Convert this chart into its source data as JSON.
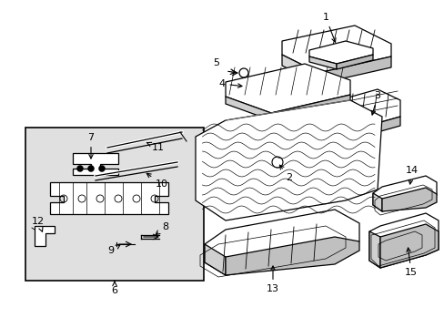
{
  "background_color": "#ffffff",
  "line_color": "#000000",
  "box_bg": "#e0e0e0",
  "figsize": [
    4.89,
    3.6
  ],
  "dpi": 100
}
